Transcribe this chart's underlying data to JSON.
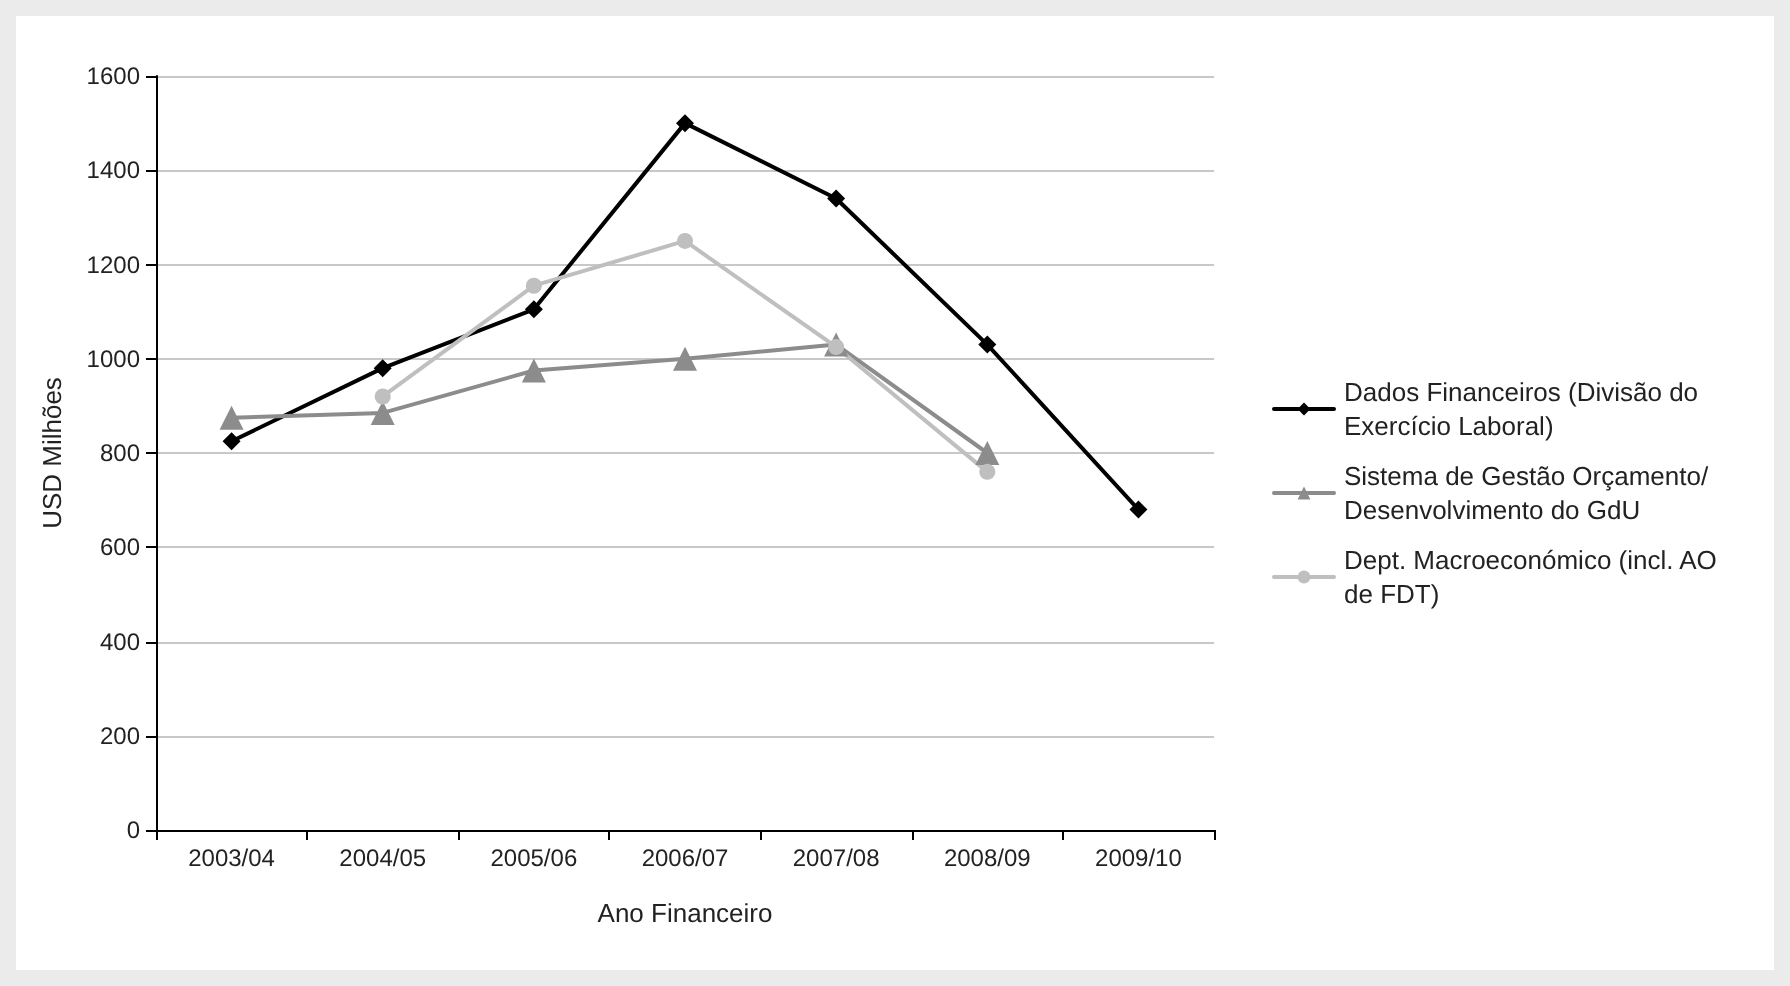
{
  "chart_data": {
    "type": "line",
    "xlabel": "Ano Financeiro",
    "ylabel": "USD Milhões",
    "categories": [
      "2003/04",
      "2004/05",
      "2005/06",
      "2006/07",
      "2007/08",
      "2008/09",
      "2009/10"
    ],
    "series": [
      {
        "name": "Dados Financeiros (Divisão do Exercício Laboral)",
        "color": "#000000",
        "marker": "diamond",
        "values": [
          825,
          980,
          1105,
          1500,
          1340,
          1030,
          680
        ]
      },
      {
        "name": "Sistema de Gestão Orçamento/ Desenvolvimento do GdU",
        "color": "#8c8c8c",
        "marker": "triangle",
        "values": [
          875,
          885,
          975,
          1000,
          1030,
          800,
          null
        ]
      },
      {
        "name": "Dept. Macroeconómico (incl. AO de FDT)",
        "color": "#bfbfbf",
        "marker": "circle",
        "values": [
          null,
          920,
          1155,
          1250,
          1025,
          760,
          null
        ]
      }
    ],
    "ylim": [
      0,
      1600
    ],
    "yticks": [
      0,
      200,
      400,
      600,
      800,
      1000,
      1200,
      1400,
      1600
    ],
    "grid": "y",
    "legend": "right",
    "line_style": "solid"
  }
}
